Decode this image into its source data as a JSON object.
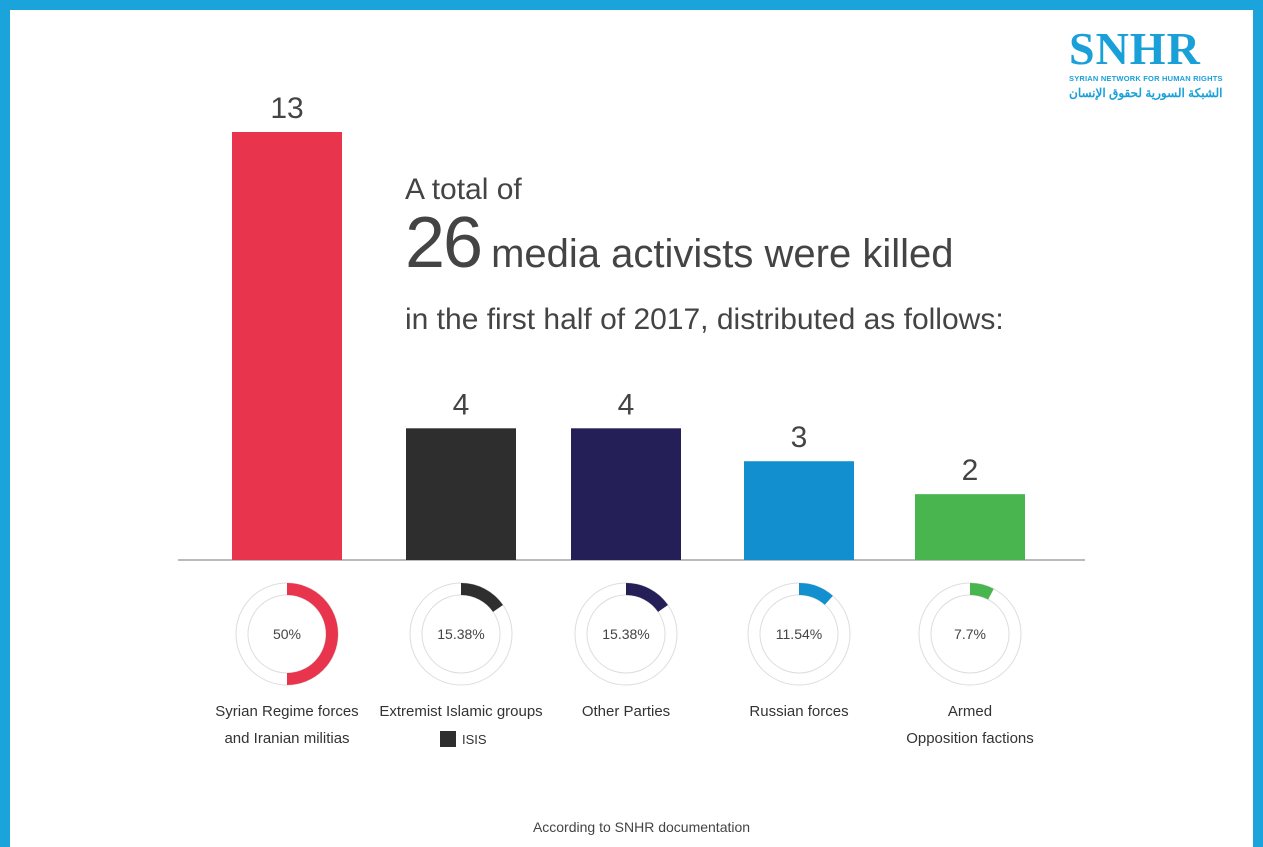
{
  "headline": {
    "prefix": "A total of",
    "count": "26",
    "main": "media activists were killed",
    "suffix": "in the first half of 2017, distributed as follows:"
  },
  "logo": {
    "mark": "SNHR",
    "english": "SYRIAN NETWORK FOR HUMAN RIGHTS",
    "arabic": "الشبكة السورية لحقوق الإنسان"
  },
  "legend": {
    "isis": "ISIS"
  },
  "footer": "According to SNHR documentation",
  "chart_data": {
    "type": "bar",
    "categories": [
      "Syrian Regime forces and Iranian militias",
      "Extremist Islamic groups",
      "Other Parties",
      "Russian forces",
      "Armed Opposition factions"
    ],
    "category_lines": [
      [
        "Syrian Regime forces",
        "and Iranian militias"
      ],
      [
        "Extremist Islamic groups"
      ],
      [
        "Other Parties"
      ],
      [
        "Russian forces"
      ],
      [
        "Armed",
        "Opposition factions"
      ]
    ],
    "values": [
      13,
      4,
      4,
      3,
      2
    ],
    "value_labels": [
      "13",
      "4",
      "4",
      "3",
      "2"
    ],
    "percent_labels": [
      "50%",
      "15.38%",
      "15.38%",
      "11.54%",
      "7.7%"
    ],
    "percents": [
      50,
      15.38,
      15.38,
      11.54,
      7.7
    ],
    "colors": [
      "#e8344c",
      "#2e2e2e",
      "#242057",
      "#128fcf",
      "#48b54f"
    ],
    "ylim": [
      0,
      13
    ],
    "grid": false
  }
}
